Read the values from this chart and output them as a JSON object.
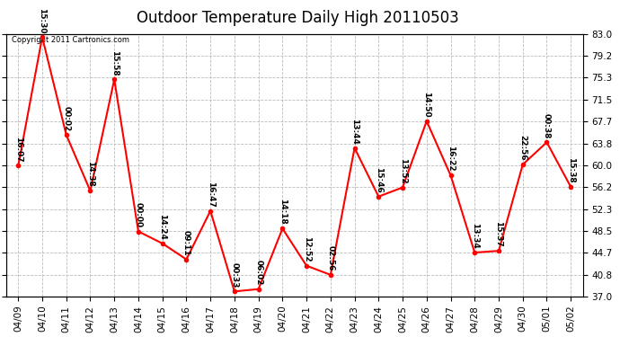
{
  "title": "Outdoor Temperature Daily High 20110503",
  "copyright": "Copyright 2011 Cartronics.com",
  "background_color": "#ffffff",
  "plot_bg_color": "#ffffff",
  "grid_color": "#bbbbbb",
  "line_color": "#ff0000",
  "marker_color": "#ff0000",
  "dates": [
    "04/09",
    "04/10",
    "04/11",
    "04/12",
    "04/13",
    "04/14",
    "04/15",
    "04/16",
    "04/17",
    "04/18",
    "04/19",
    "04/20",
    "04/21",
    "04/22",
    "04/23",
    "04/24",
    "04/25",
    "04/26",
    "04/27",
    "04/28",
    "04/29",
    "04/30",
    "05/01",
    "05/02"
  ],
  "temperatures": [
    59.9,
    82.4,
    65.3,
    55.5,
    75.0,
    48.4,
    46.3,
    43.5,
    52.0,
    37.9,
    38.3,
    48.9,
    42.4,
    40.8,
    63.0,
    54.5,
    56.1,
    67.7,
    58.2,
    44.7,
    45.0,
    60.1,
    64.0,
    56.2
  ],
  "labels": [
    "16:07",
    "15:30",
    "00:02",
    "14:38",
    "15:58",
    "00:00",
    "14:24",
    "09:11",
    "16:47",
    "00:33",
    "06:02",
    "14:18",
    "12:52",
    "02:56",
    "13:44",
    "15:46",
    "13:52",
    "14:50",
    "16:22",
    "13:34",
    "15:37",
    "22:56",
    "00:38",
    "15:38"
  ],
  "yticks": [
    37.0,
    40.8,
    44.7,
    48.5,
    52.3,
    56.2,
    60.0,
    63.8,
    67.7,
    71.5,
    75.3,
    79.2,
    83.0
  ],
  "ylim": [
    37.0,
    83.0
  ],
  "title_fontsize": 12,
  "label_fontsize": 6.5,
  "tick_fontsize": 7.5,
  "copyright_fontsize": 6
}
